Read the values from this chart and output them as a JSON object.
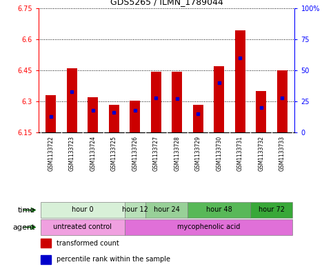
{
  "title": "GDS5265 / ILMN_1789044",
  "samples": [
    "GSM1133722",
    "GSM1133723",
    "GSM1133724",
    "GSM1133725",
    "GSM1133726",
    "GSM1133727",
    "GSM1133728",
    "GSM1133729",
    "GSM1133730",
    "GSM1133731",
    "GSM1133732",
    "GSM1133733"
  ],
  "transformed_count": [
    6.33,
    6.46,
    6.32,
    6.285,
    6.305,
    6.445,
    6.445,
    6.285,
    6.47,
    6.645,
    6.35,
    6.45
  ],
  "percentile_rank": [
    13,
    33,
    18,
    16,
    18,
    28,
    27,
    15,
    40,
    60,
    20,
    28
  ],
  "base_value": 6.15,
  "ylim_left": [
    6.15,
    6.75
  ],
  "ylim_right": [
    0,
    100
  ],
  "yticks_left": [
    6.15,
    6.3,
    6.45,
    6.6,
    6.75
  ],
  "yticks_right": [
    0,
    25,
    50,
    75,
    100
  ],
  "ytick_labels_left": [
    "6.15",
    "6.3",
    "6.45",
    "6.6",
    "6.75"
  ],
  "ytick_labels_right": [
    "0",
    "25",
    "50",
    "75",
    "100%"
  ],
  "time_groups": [
    {
      "label": "hour 0",
      "start": 0,
      "end": 4,
      "color": "#d8f0d8"
    },
    {
      "label": "hour 12",
      "start": 4,
      "end": 5,
      "color": "#b8e0b8"
    },
    {
      "label": "hour 24",
      "start": 5,
      "end": 7,
      "color": "#98d098"
    },
    {
      "label": "hour 48",
      "start": 7,
      "end": 10,
      "color": "#58b858"
    },
    {
      "label": "hour 72",
      "start": 10,
      "end": 12,
      "color": "#38a838"
    }
  ],
  "agent_groups": [
    {
      "label": "untreated control",
      "start": 0,
      "end": 4,
      "color": "#f0a0e0"
    },
    {
      "label": "mycophenolic acid",
      "start": 4,
      "end": 12,
      "color": "#e070d8"
    }
  ],
  "bar_color": "#cc0000",
  "dot_color": "#0000cc",
  "bar_width": 0.5,
  "background_color": "#ffffff",
  "sample_bg_color": "#c8c8c8",
  "legend_items": [
    {
      "color": "#cc0000",
      "label": "transformed count"
    },
    {
      "color": "#0000cc",
      "label": "percentile rank within the sample"
    }
  ]
}
